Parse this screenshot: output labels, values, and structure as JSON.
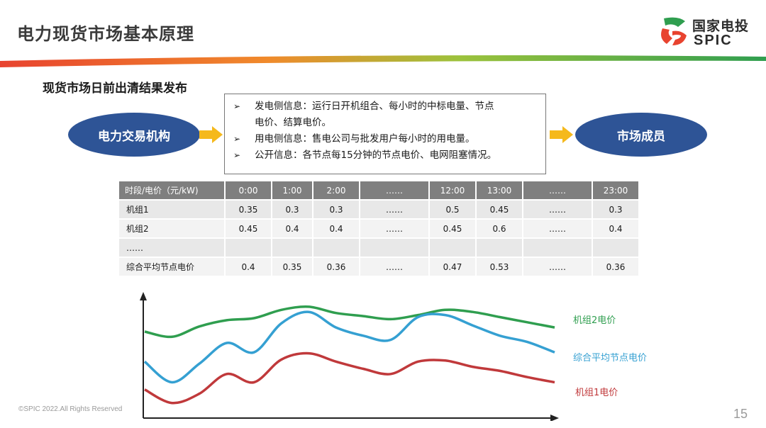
{
  "slide": {
    "title": "电力现货市场基本原理",
    "page_number": "15",
    "copyright": "©SPIC 2022.All Rights Reserved"
  },
  "logo": {
    "cn": "国家电投",
    "en": "SPIC"
  },
  "section": {
    "title": "现货市场日前出清结果发布"
  },
  "flow": {
    "left_label": "电力交易机构",
    "right_label": "市场成员",
    "bullet_mark": "➢",
    "items": [
      {
        "line1": "发电侧信息：运行日开机组合、每小时的中标电量、节点",
        "line2": "电价、结算电价。"
      },
      {
        "line1": "用电侧信息：售电公司与批发用户每小时的用电量。"
      },
      {
        "line1": "公开信息：各节点每15分钟的节点电价、电网阻塞情况。"
      }
    ]
  },
  "table": {
    "headers": [
      "时段/电价（元/kW)",
      "0:00",
      "1:00",
      "2:00",
      "……",
      "12:00",
      "13:00",
      "……",
      "23:00"
    ],
    "rows": [
      [
        "机组1",
        "0.35",
        "0.3",
        "0.3",
        "……",
        "0.5",
        "0.45",
        "……",
        "0.3"
      ],
      [
        "机组2",
        "0.45",
        "0.4",
        "0.4",
        "……",
        "0.45",
        "0.6",
        "……",
        "0.4"
      ],
      [
        "……",
        "",
        "",
        "",
        "",
        "",
        "",
        "",
        ""
      ],
      [
        "综合平均节点电价",
        "0.4",
        "0.35",
        "0.36",
        "……",
        "0.47",
        "0.53",
        "……",
        "0.36"
      ]
    ]
  },
  "chart_data": {
    "type": "line",
    "title": "",
    "xlabel": "",
    "ylabel": "",
    "x": [
      0,
      1,
      2,
      3,
      4,
      5,
      6,
      7,
      8,
      9,
      10,
      11,
      12,
      13,
      14,
      15
    ],
    "ylim": [
      0,
      100
    ],
    "series": [
      {
        "name": "机组2电价",
        "color": "#2f9e4f",
        "values": [
          74,
          69,
          79,
          85,
          87,
          95,
          98,
          92,
          89,
          86,
          90,
          95,
          93,
          88,
          83,
          78
        ]
      },
      {
        "name": "综合平均节点电价",
        "color": "#35a0d2",
        "values": [
          45,
          25,
          43,
          63,
          54,
          82,
          93,
          78,
          70,
          66,
          88,
          90,
          80,
          70,
          64,
          54
        ]
      },
      {
        "name": "机组1电价",
        "color": "#c0393b",
        "values": [
          18,
          5,
          14,
          33,
          25,
          47,
          53,
          45,
          38,
          33,
          45,
          46,
          40,
          36,
          30,
          25
        ]
      }
    ]
  }
}
